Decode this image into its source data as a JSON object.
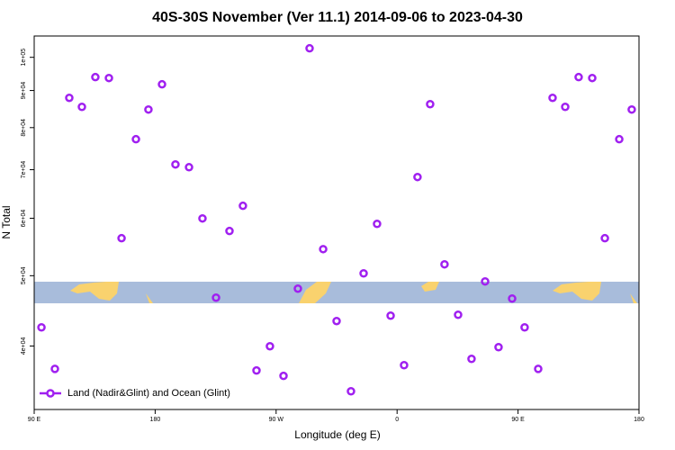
{
  "chart_data": {
    "type": "scatter",
    "title": "40S-30S November (Ver 11.1)   2014-09-06 to 2023-04-30",
    "xlabel": "Longitude (deg E)",
    "ylabel": "N Total",
    "xlim": [
      90,
      540
    ],
    "xticks": [
      {
        "value": 90,
        "label": "90 E"
      },
      180,
      {
        "value": 270,
        "label": "90 W"
      },
      {
        "value": 360,
        "label": "0"
      },
      {
        "value": 450,
        "label": "90 E"
      },
      {
        "value": 540,
        "label": "180"
      }
    ],
    "ylim": [
      32700,
      107000
    ],
    "log_y": true,
    "yticks": [
      {
        "value": 40000,
        "label": "4e+04"
      },
      {
        "value": 50000,
        "label": "5e+04"
      },
      {
        "value": 60000,
        "label": "6e+04"
      },
      {
        "value": 70000,
        "label": "7e+04"
      },
      {
        "value": 80000,
        "label": "8e+04"
      },
      {
        "value": 90000,
        "label": "9e+04"
      },
      {
        "value": 100000,
        "label": "1e+05"
      }
    ],
    "legend": "bottom-left",
    "series": [
      {
        "name": "Land (Nadir&Glint) and Ocean (Glint)",
        "color": "#a020f0",
        "x": [
          95.4,
          105.4,
          116.1,
          125.5,
          135.5,
          145.6,
          155.0,
          165.7,
          175.0,
          185.1,
          195.1,
          205.2,
          215.2,
          225.3,
          235.3,
          245.3,
          255.4,
          265.4,
          275.5,
          286.2,
          294.9,
          305.0,
          315.0,
          325.7,
          335.1,
          345.1,
          355.2,
          365.2,
          375.2,
          384.6,
          395.3,
          405.4,
          415.4,
          425.5,
          435.5,
          445.6,
          454.9,
          465.0,
          475.7,
          485.1,
          495.1,
          505.2,
          514.6,
          525.3,
          534.6
        ],
        "values": [
          42440,
          37200,
          87930,
          85450,
          93910,
          93640,
          56320,
          77110,
          84730,
          91790,
          71180,
          70550,
          59970,
          46630,
          57620,
          62420,
          37010,
          39970,
          36380,
          47990,
          102900,
          54400,
          43300,
          34650,
          50370,
          58940,
          44040,
          37640,
          68390,
          86180,
          51840,
          44170,
          38400,
          49100,
          39850,
          46500,
          42440,
          37200,
          87930,
          85450,
          93910,
          93640,
          56320,
          77110,
          84730
        ]
      }
    ]
  }
}
